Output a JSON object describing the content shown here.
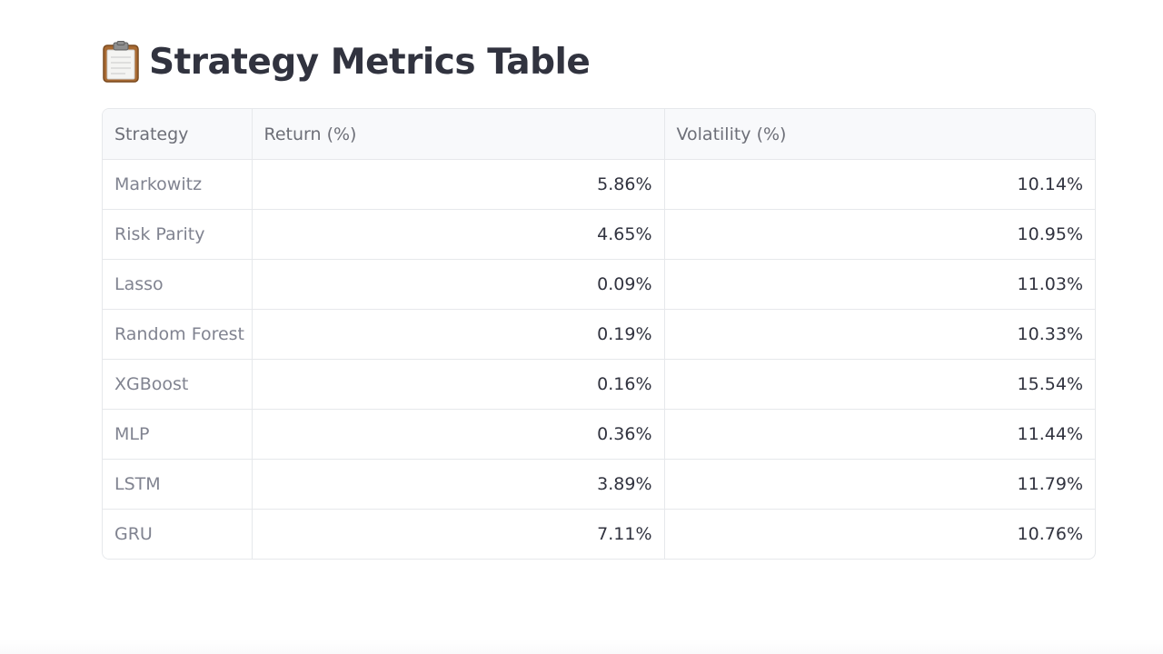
{
  "header": {
    "title": "Strategy Metrics Table",
    "icon": "clipboard-icon"
  },
  "table": {
    "columns": [
      "Strategy",
      "Return (%)",
      "Volatility (%)"
    ],
    "rows": [
      {
        "strategy": "Markowitz",
        "return": "5.86%",
        "volatility": "10.14%"
      },
      {
        "strategy": "Risk Parity",
        "return": "4.65%",
        "volatility": "10.95%"
      },
      {
        "strategy": "Lasso",
        "return": "0.09%",
        "volatility": "11.03%"
      },
      {
        "strategy": "Random Forest",
        "return": "0.19%",
        "volatility": "10.33%"
      },
      {
        "strategy": "XGBoost",
        "return": "0.16%",
        "volatility": "15.54%"
      },
      {
        "strategy": "MLP",
        "return": "0.36%",
        "volatility": "11.44%"
      },
      {
        "strategy": "LSTM",
        "return": "3.89%",
        "volatility": "11.79%"
      },
      {
        "strategy": "GRU",
        "return": "7.11%",
        "volatility": "10.76%"
      }
    ]
  },
  "colors": {
    "text": "#31333f",
    "muted_text": "#808390",
    "header_bg": "#f8f9fb",
    "border": "#e6e8eb"
  }
}
